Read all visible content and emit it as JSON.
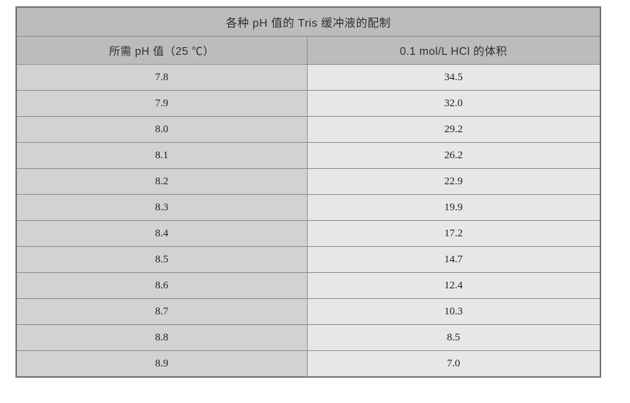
{
  "table": {
    "title": "各种 pH 值的 Tris 缓冲液的配制",
    "columns": [
      "所需 pH 值（25 ℃）",
      "0.1 mol/L HCl 的体积"
    ],
    "rows": [
      {
        "ph": "7.8",
        "volume": "34.5"
      },
      {
        "ph": "7.9",
        "volume": "32.0"
      },
      {
        "ph": "8.0",
        "volume": "29.2"
      },
      {
        "ph": "8.1",
        "volume": "26.2"
      },
      {
        "ph": "8.2",
        "volume": "22.9"
      },
      {
        "ph": "8.3",
        "volume": "19.9"
      },
      {
        "ph": "8.4",
        "volume": "17.2"
      },
      {
        "ph": "8.5",
        "volume": "14.7"
      },
      {
        "ph": "8.6",
        "volume": "12.4"
      },
      {
        "ph": "8.7",
        "volume": "10.3"
      },
      {
        "ph": "8.8",
        "volume": "8.5"
      },
      {
        "ph": "8.9",
        "volume": "7.0"
      }
    ]
  },
  "colors": {
    "header_bg": "#bcbcbc",
    "left_col_bg": "#d2d2d2",
    "right_col_bg": "#e7e7e7",
    "border": "#8a8a8a",
    "outer_border": "#6e6e6e",
    "text": "#2f2f2f"
  }
}
